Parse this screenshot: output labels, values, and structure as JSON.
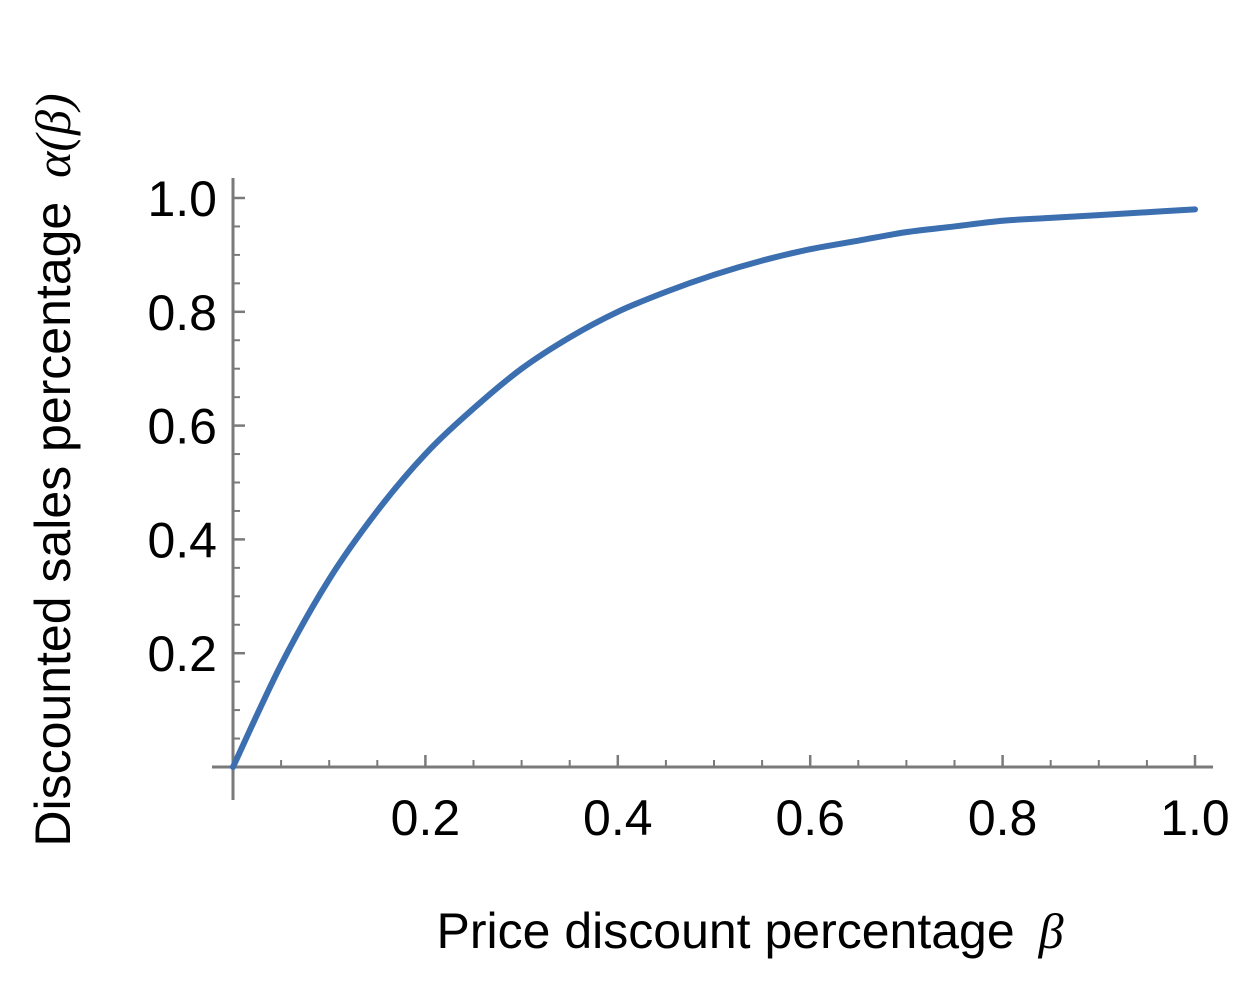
{
  "chart_data": {
    "type": "line",
    "title": "",
    "xlabel": "Price discount percentage",
    "xlabel_symbol": "β",
    "ylabel": "Discounted sales percentage",
    "ylabel_symbol": "α(β)",
    "xlim": [
      0,
      1
    ],
    "ylim": [
      0,
      1
    ],
    "x_ticks": [
      0.2,
      0.4,
      0.6,
      0.8,
      1.0
    ],
    "x_tick_labels": [
      "0.2",
      "0.4",
      "0.6",
      "0.8",
      "1.0"
    ],
    "y_ticks": [
      0.2,
      0.4,
      0.6,
      0.8,
      1.0
    ],
    "y_tick_labels": [
      "0.2",
      "0.4",
      "0.6",
      "0.8",
      "1.0"
    ],
    "grid": false,
    "legend": "none",
    "series": [
      {
        "color": "#3b6fb0",
        "x": [
          0,
          0.05,
          0.1,
          0.15,
          0.2,
          0.25,
          0.3,
          0.35,
          0.4,
          0.45,
          0.5,
          0.55,
          0.6,
          0.65,
          0.7,
          0.75,
          0.8,
          0.85,
          0.9,
          0.95,
          1.0
        ],
        "y": [
          0,
          0.18,
          0.33,
          0.45,
          0.55,
          0.63,
          0.7,
          0.755,
          0.8,
          0.835,
          0.865,
          0.89,
          0.91,
          0.925,
          0.94,
          0.95,
          0.96,
          0.965,
          0.97,
          0.975,
          0.98
        ]
      }
    ]
  }
}
